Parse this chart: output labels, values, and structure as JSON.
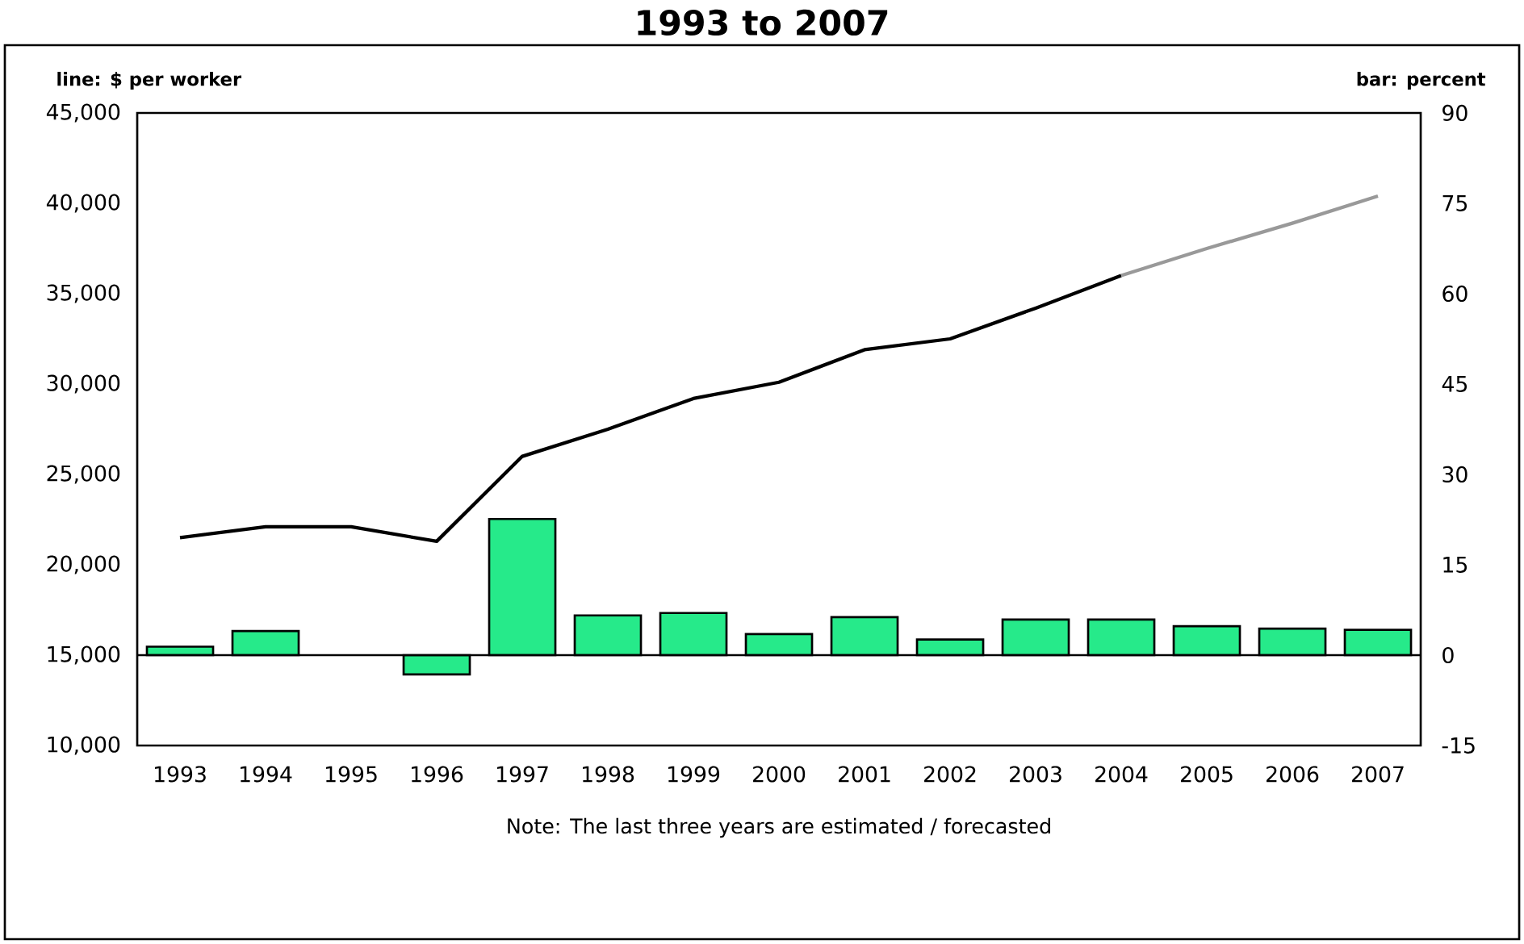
{
  "chart_data": {
    "type": "bar",
    "title": "1993 to 2007",
    "ylabel": "line: $ per worker",
    "y2label": "bar: percent",
    "annotations": [
      "Note: The last three years are estimated / forecasted"
    ],
    "categories": [
      "1993",
      "1994",
      "1995",
      "1996",
      "1997",
      "1998",
      "1999",
      "2000",
      "2001",
      "2002",
      "2003",
      "2004",
      "2005",
      "2006",
      "2007"
    ],
    "series": [
      {
        "axis": "y2",
        "color": "#26ea8a",
        "values": [
          1.4,
          4.0,
          null,
          -3.2,
          22.6,
          6.6,
          7.0,
          3.5,
          6.3,
          2.6,
          5.9,
          5.9,
          4.8,
          4.4,
          4.2
        ]
      },
      {
        "type": "line",
        "axis": "y",
        "color": "#000000",
        "values": [
          21500,
          22100,
          22100,
          21300,
          26000,
          27500,
          29200,
          30100,
          31900,
          32500,
          34200,
          36000,
          null,
          null,
          null
        ]
      },
      {
        "type": "line",
        "axis": "y",
        "color": "#999999",
        "values": [
          null,
          null,
          null,
          null,
          null,
          null,
          null,
          null,
          null,
          null,
          null,
          36000,
          37500,
          38900,
          40400
        ]
      }
    ],
    "ylim": [
      10000,
      45000
    ],
    "yticks": [
      {
        "value": 10000,
        "label": "10,000"
      },
      {
        "value": 15000,
        "label": "15,000"
      },
      {
        "value": 20000,
        "label": "20,000"
      },
      {
        "value": 25000,
        "label": "25,000"
      },
      {
        "value": 30000,
        "label": "30,000"
      },
      {
        "value": 35000,
        "label": "35,000"
      },
      {
        "value": 40000,
        "label": "40,000"
      },
      {
        "value": 45000,
        "label": "45,000"
      }
    ],
    "y2lim": [
      -15,
      90
    ],
    "y2ticks": [
      -15,
      0,
      15,
      30,
      45,
      60,
      75,
      90
    ],
    "ref_lines": [
      {
        "axis": "y2",
        "value": 0,
        "color": "#000000"
      }
    ]
  }
}
